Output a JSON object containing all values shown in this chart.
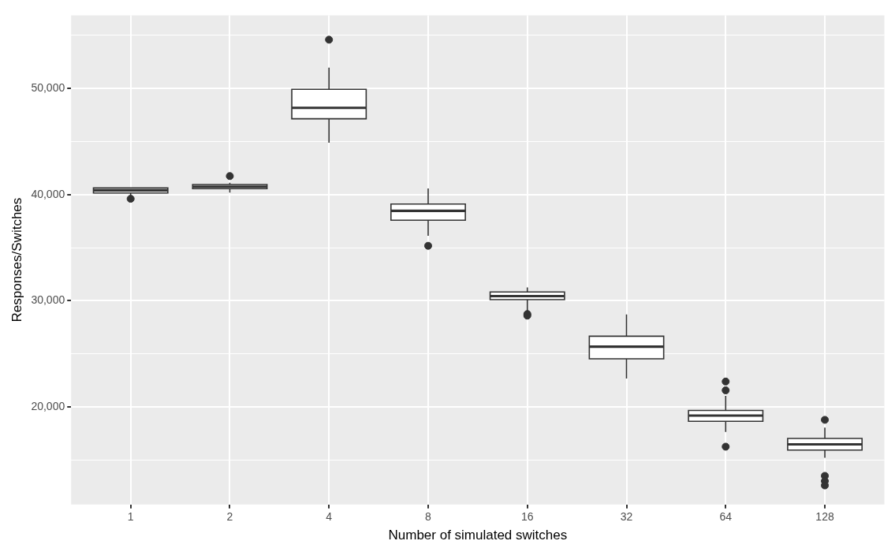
{
  "chart_data": {
    "type": "box",
    "xlabel": "Number of simulated switches",
    "ylabel": "Responses/Switches",
    "categories": [
      "1",
      "2",
      "4",
      "8",
      "16",
      "32",
      "64",
      "128"
    ],
    "boxes": [
      {
        "low": 39930,
        "q1": 40150,
        "median": 40400,
        "q3": 40630,
        "high": 40660,
        "outliers": [
          39610
        ]
      },
      {
        "low": 40200,
        "q1": 40560,
        "median": 40750,
        "q3": 40950,
        "high": 41120,
        "outliers": [
          41750
        ]
      },
      {
        "low": 44890,
        "q1": 47150,
        "median": 48180,
        "q3": 49930,
        "high": 51970,
        "outliers": [
          54600
        ]
      },
      {
        "low": 36130,
        "q1": 37590,
        "median": 38470,
        "q3": 39120,
        "high": 40580,
        "outliers": [
          35180
        ]
      },
      {
        "low": 29070,
        "q1": 30100,
        "median": 30440,
        "q3": 30830,
        "high": 31260,
        "outliers": [
          28750,
          28600
        ]
      },
      {
        "low": 22680,
        "q1": 24530,
        "median": 25670,
        "q3": 26660,
        "high": 28710
      },
      {
        "low": 17640,
        "q1": 18640,
        "median": 19180,
        "q3": 19660,
        "high": 21040,
        "outliers": [
          22390,
          21560,
          16250
        ]
      },
      {
        "low": 15200,
        "q1": 15930,
        "median": 16470,
        "q3": 17030,
        "high": 18050,
        "outliers": [
          18780,
          13500,
          13010,
          12600
        ]
      }
    ],
    "ylim": [
      10800,
      56900
    ],
    "yticks": [
      {
        "value": 15000,
        "label": null
      },
      {
        "value": 20000,
        "label": "20,000"
      },
      {
        "value": 25000,
        "label": null
      },
      {
        "value": 30000,
        "label": "30,000"
      },
      {
        "value": 35000,
        "label": null
      },
      {
        "value": 40000,
        "label": "40,000"
      },
      {
        "value": 45000,
        "label": null
      },
      {
        "value": 50000,
        "label": "50,000"
      },
      {
        "value": 55000,
        "label": null
      }
    ],
    "grid": true,
    "legend": false
  }
}
